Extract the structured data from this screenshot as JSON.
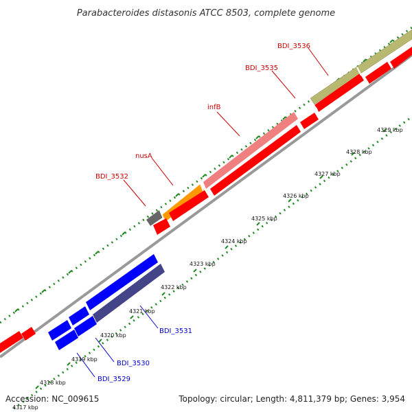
{
  "title": "Parabacteroides distasonis ATCC 8503, complete genome",
  "footer": {
    "accession": "Accession: NC_009615",
    "summary": "Topology: circular; Length: 4,811,379 bp; Genes: 3,954"
  },
  "ticks": [
    "4317 kbp",
    "4318 kbp",
    "4319 kbp",
    "4320 kbp",
    "4321 kbp",
    "4322 kbp",
    "4323 kbp",
    "4324 kbp",
    "4325 kbp",
    "4326 kbp",
    "4327 kbp",
    "4328 kbp",
    "4329 kbp"
  ],
  "gene_labels": [
    {
      "text": "BDI_3536",
      "color": "#cc0000"
    },
    {
      "text": "BDI_3535",
      "color": "#cc0000"
    },
    {
      "text": "infB",
      "color": "#cc0000"
    },
    {
      "text": "nusA",
      "color": "#cc0000"
    },
    {
      "text": "BDI_3532",
      "color": "#cc0000"
    },
    {
      "text": "BDI_3531",
      "color": "#0000cc"
    },
    {
      "text": "BDI_3530",
      "color": "#0000cc"
    },
    {
      "text": "BDI_3529",
      "color": "#0000cc"
    }
  ],
  "colors": {
    "forward_gene": "#ff0000",
    "reverse_gene": "#0000ff",
    "cds_blue_dark": "#444488",
    "cds_pink": "#f08080",
    "cds_orange": "#ff9900",
    "cds_olive": "#b8b870",
    "cds_gray": "#666666",
    "backbone": "#999999",
    "dots": "#228822"
  }
}
